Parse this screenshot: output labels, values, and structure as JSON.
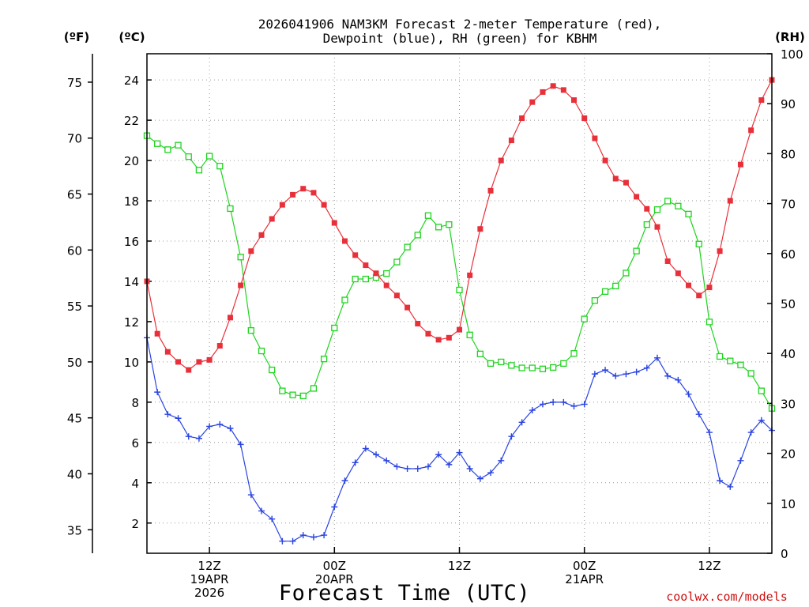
{
  "chart_data": {
    "type": "line",
    "title_line1": "2026041906 NAM3KM Forecast 2-meter Temperature (red),",
    "title_line2": "Dewpoint (blue), RH (green) for KBHM",
    "xlabel": "Forecast Time (UTC)",
    "credit": "coolwx.com/models",
    "unit_f": "(ºF)",
    "unit_c": "(ºC)",
    "unit_rh": "(RH)",
    "x_hours_range": [
      6,
      66
    ],
    "y_celsius_range": [
      0.5,
      25.3
    ],
    "rh_range": [
      0,
      100
    ],
    "fahrenheit_ticks": [
      "35",
      "40",
      "45",
      "50",
      "55",
      "60",
      "65",
      "70",
      "75"
    ],
    "celsius_ticks": [
      "2",
      "4",
      "6",
      "8",
      "10",
      "12",
      "14",
      "16",
      "18",
      "20",
      "22",
      "24"
    ],
    "rh_ticks": [
      "0",
      "10",
      "20",
      "30",
      "40",
      "50",
      "60",
      "70",
      "80",
      "90",
      "100"
    ],
    "x_ticks": [
      {
        "hour": 12,
        "lines": [
          "12Z",
          "19APR",
          "2026"
        ]
      },
      {
        "hour": 24,
        "lines": [
          "00Z",
          "20APR"
        ]
      },
      {
        "hour": 36,
        "lines": [
          "12Z"
        ]
      },
      {
        "hour": 48,
        "lines": [
          "00Z",
          "21APR"
        ]
      },
      {
        "hour": 60,
        "lines": [
          "12Z"
        ]
      }
    ],
    "series": [
      {
        "name": "2-meter Temperature",
        "units": "C",
        "color": "#e8303a",
        "marker": "filled-square",
        "values": [
          14.0,
          11.4,
          10.5,
          10.0,
          9.6,
          10.0,
          10.1,
          10.8,
          12.2,
          13.8,
          15.5,
          16.3,
          17.1,
          17.8,
          18.3,
          18.6,
          18.4,
          17.8,
          16.9,
          16.0,
          15.3,
          14.8,
          14.4,
          13.8,
          13.3,
          12.7,
          11.9,
          11.4,
          11.1,
          11.2,
          11.6,
          14.3,
          16.6,
          18.5,
          20.0,
          21.0,
          22.1,
          22.9,
          23.4,
          23.7,
          23.5,
          23.0,
          22.1,
          21.1,
          20.0,
          19.1,
          18.9,
          18.2,
          17.6,
          16.7,
          15.0,
          14.4,
          13.8,
          13.3,
          13.7,
          15.5,
          18.0,
          19.8,
          21.5,
          23.0,
          24.0
        ]
      },
      {
        "name": "Dewpoint",
        "units": "C",
        "color": "#2a44e0",
        "marker": "plus",
        "values": [
          11.2,
          8.5,
          7.4,
          7.2,
          6.3,
          6.2,
          6.8,
          6.9,
          6.7,
          5.9,
          3.4,
          2.6,
          2.2,
          1.1,
          1.1,
          1.4,
          1.3,
          1.4,
          2.8,
          4.1,
          5.0,
          5.7,
          5.4,
          5.1,
          4.8,
          4.7,
          4.7,
          4.8,
          5.4,
          4.9,
          5.5,
          4.7,
          4.2,
          4.5,
          5.1,
          6.3,
          7.0,
          7.6,
          7.9,
          8.0,
          8.0,
          7.8,
          7.9,
          9.4,
          9.6,
          9.3,
          9.4,
          9.5,
          9.7,
          10.2,
          9.3,
          9.1,
          8.4,
          7.4,
          6.5,
          4.1,
          3.8,
          5.1,
          6.5,
          7.1,
          6.6
        ]
      },
      {
        "name": "RH",
        "units": "%",
        "color": "#1ed41e",
        "marker": "open-square",
        "values": [
          83.6,
          82.0,
          80.8,
          81.7,
          79.4,
          76.7,
          79.5,
          77.5,
          69.0,
          59.3,
          44.6,
          40.5,
          36.7,
          32.5,
          31.7,
          31.5,
          33.0,
          38.9,
          45.1,
          50.7,
          54.9,
          54.9,
          55.2,
          56.0,
          58.3,
          61.3,
          63.7,
          67.6,
          65.3,
          65.8,
          52.7,
          43.7,
          39.9,
          38.0,
          38.3,
          37.6,
          37.1,
          37.1,
          36.9,
          37.2,
          38.0,
          40.0,
          46.9,
          50.6,
          52.4,
          53.5,
          56.1,
          60.5,
          65.8,
          68.8,
          70.5,
          69.5,
          67.9,
          61.9,
          46.3,
          39.4,
          38.5,
          37.7,
          36.0,
          32.5,
          29.0
        ]
      }
    ]
  }
}
